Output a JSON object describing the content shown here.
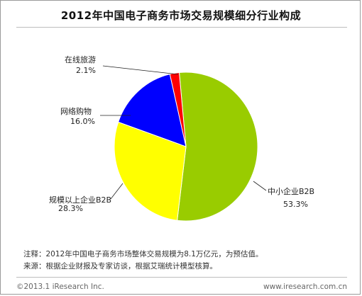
{
  "chart_data": {
    "type": "pie",
    "title": "2012年中国电子商务市场交易规模细分行业构成",
    "slices": [
      {
        "name": "中小企业B2B",
        "value_label": "53.3%",
        "value": 53.3,
        "color": "#99cc00"
      },
      {
        "name": "规模以上企业B2B",
        "value_label": "28.3%",
        "value": 28.3,
        "color": "#ffff00"
      },
      {
        "name": "网络购物",
        "value_label": "16.0%",
        "value": 16.0,
        "color": "#0000ff"
      },
      {
        "name": "在线旅游",
        "value_label": "2.1%",
        "value": 2.1,
        "color": "#ff0000"
      }
    ]
  },
  "notes": {
    "note1": "注释：2012年中国电子商务市场整体交易规模为8.1万亿元，为预估值。",
    "note2": "来源：根据企业财报及专家访谈，根据艾瑞统计模型核算。"
  },
  "footer": {
    "copyright": "©2013.1 iResearch Inc.",
    "url": "www.iresearch.com.cn"
  }
}
